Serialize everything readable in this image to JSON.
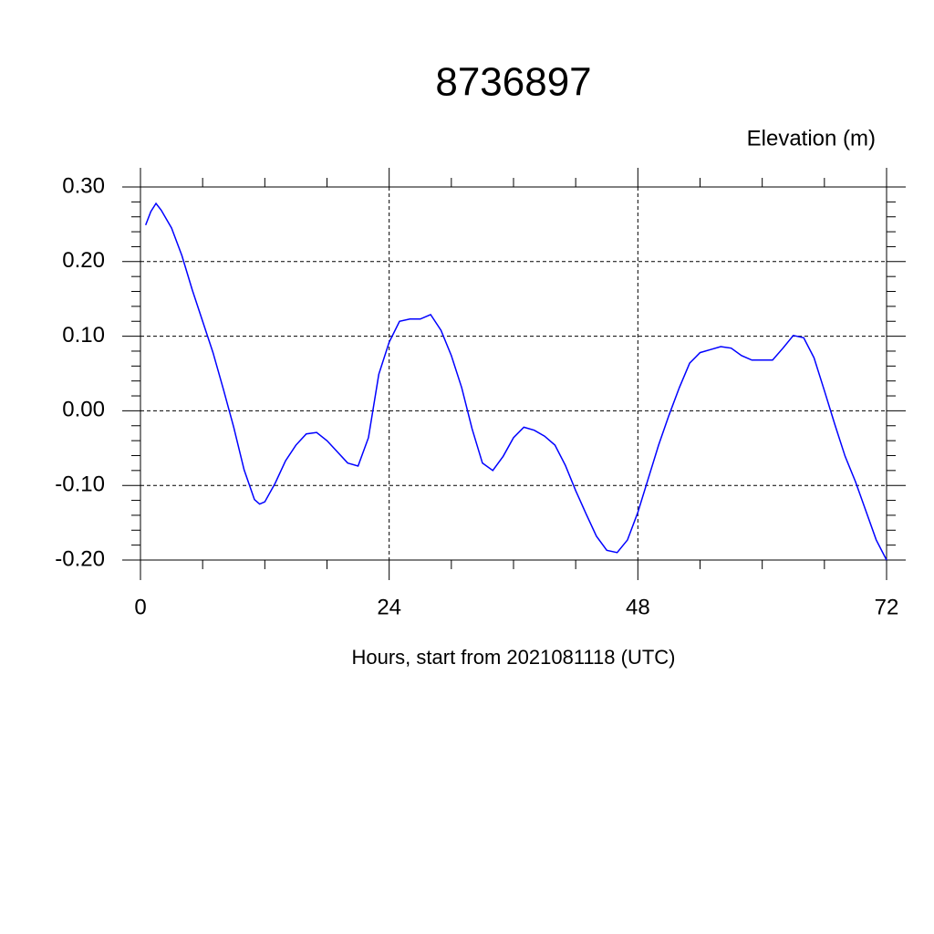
{
  "chart_data": {
    "type": "line",
    "title": "8736897",
    "ylabel": "Elevation (m)",
    "xlabel": "Hours, start from 2021081118 (UTC)",
    "x": [
      0.5,
      1,
      1.5,
      2,
      3,
      4,
      5,
      6,
      7,
      8,
      9,
      10,
      11,
      11.5,
      12,
      13,
      14,
      15,
      16,
      17,
      18,
      19,
      20,
      21,
      22,
      23,
      24,
      25,
      26,
      27,
      28,
      29,
      30,
      31,
      32,
      33,
      34,
      35,
      36,
      37,
      38,
      39,
      40,
      41,
      42,
      43,
      44,
      45,
      46,
      47,
      48,
      49,
      50,
      51,
      52,
      53,
      54,
      55,
      56,
      57,
      58,
      59,
      60,
      61,
      62,
      63,
      64,
      65,
      66,
      67,
      68,
      69,
      70,
      71,
      72
    ],
    "series": [
      {
        "name": "Elevation",
        "color": "#0000ff",
        "values": [
          0.249,
          0.267,
          0.278,
          0.269,
          0.245,
          0.208,
          0.162,
          0.12,
          0.078,
          0.029,
          -0.022,
          -0.079,
          -0.119,
          -0.125,
          -0.122,
          -0.097,
          -0.067,
          -0.046,
          -0.031,
          -0.029,
          -0.04,
          -0.055,
          -0.07,
          -0.074,
          -0.036,
          0.049,
          0.092,
          0.12,
          0.123,
          0.123,
          0.129,
          0.108,
          0.074,
          0.031,
          -0.024,
          -0.07,
          -0.08,
          -0.061,
          -0.036,
          -0.022,
          -0.026,
          -0.034,
          -0.046,
          -0.073,
          -0.107,
          -0.138,
          -0.168,
          -0.187,
          -0.19,
          -0.173,
          -0.136,
          -0.091,
          -0.046,
          -0.006,
          0.031,
          0.064,
          0.078,
          0.082,
          0.086,
          0.084,
          0.074,
          0.068,
          0.068,
          0.068,
          0.084,
          0.101,
          0.098,
          0.071,
          0.027,
          -0.018,
          -0.061,
          -0.095,
          -0.134,
          -0.173,
          -0.2
        ]
      }
    ],
    "xlim": [
      0,
      72
    ],
    "xticks": [
      0,
      24,
      48,
      72
    ],
    "xminorticks": [
      6,
      12,
      18,
      30,
      36,
      42,
      54,
      60,
      66
    ],
    "ylim": [
      -0.2,
      0.3
    ],
    "yticks": [
      {
        "value": -0.2,
        "label": "-0.20"
      },
      {
        "value": -0.1,
        "label": "-0.10"
      },
      {
        "value": 0,
        "label": "0.00"
      },
      {
        "value": 0.1,
        "label": "0.10"
      },
      {
        "value": 0.2,
        "label": "0.20"
      },
      {
        "value": 0.3,
        "label": "0.30"
      }
    ],
    "yminorticks": [
      -0.18,
      -0.16,
      -0.14,
      -0.12,
      -0.08,
      -0.06,
      -0.04,
      -0.02,
      0.02,
      0.04,
      0.06,
      0.08,
      0.12,
      0.14,
      0.16,
      0.18,
      0.22,
      0.24,
      0.26,
      0.28
    ],
    "grid": true
  }
}
